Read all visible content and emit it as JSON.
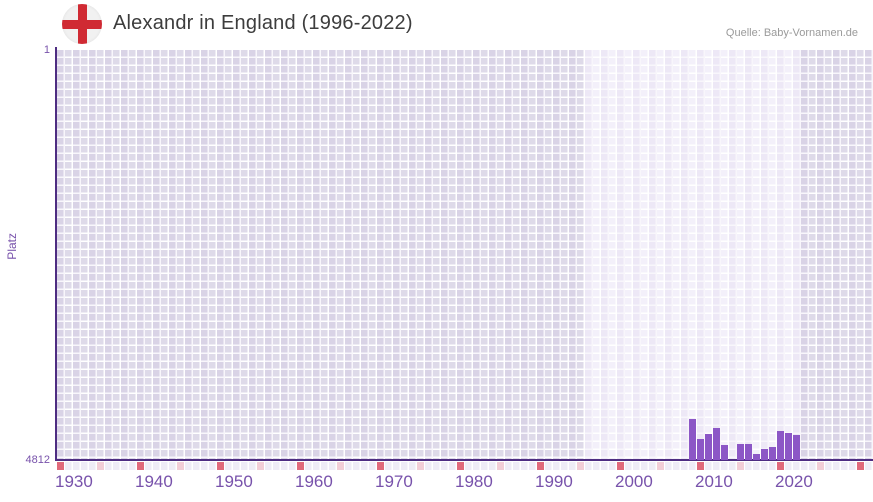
{
  "header": {
    "title": "Alexandr in England (1996-2022)",
    "source": "Quelle: Baby-Vornamen.de",
    "flag_icon": "england-flag"
  },
  "chart_data": {
    "type": "bar",
    "title": "Alexandr in England (1996-2022)",
    "ylabel": "Platz",
    "xlabel": "",
    "y_axis": {
      "top_label": "1",
      "bottom_label": "4812",
      "min": 1,
      "max": 4812,
      "inverted": true
    },
    "x_axis": {
      "start_year": 1930,
      "end_year": 2031,
      "labeled_ticks": [
        1930,
        1940,
        1950,
        1960,
        1970,
        1980,
        1990,
        2000,
        2010,
        2020
      ],
      "unlabeled_major_ticks": [
        2030
      ],
      "minor_ticks": [
        1935,
        1945,
        1955,
        1965,
        1975,
        1985,
        1995,
        2005,
        2015,
        2025
      ]
    },
    "highlight_range": {
      "from": 1996,
      "to": 2022
    },
    "grid": true,
    "legend": "none",
    "series": [
      {
        "name": "Platz",
        "points": [
          {
            "year": 2009,
            "rank": 4330
          },
          {
            "year": 2010,
            "rank": 4565
          },
          {
            "year": 2011,
            "rank": 4505
          },
          {
            "year": 2012,
            "rank": 4440
          },
          {
            "year": 2013,
            "rank": 4635
          },
          {
            "year": 2015,
            "rank": 4630
          },
          {
            "year": 2016,
            "rank": 4630
          },
          {
            "year": 2017,
            "rank": 4740
          },
          {
            "year": 2018,
            "rank": 4680
          },
          {
            "year": 2019,
            "rank": 4655
          },
          {
            "year": 2020,
            "rank": 4475
          },
          {
            "year": 2021,
            "rank": 4495
          },
          {
            "year": 2022,
            "rank": 4520
          }
        ]
      }
    ],
    "missing_years_in_range": [
      2014
    ],
    "colors": {
      "bar": "#8c57c6",
      "axis_line": "#4e2d82",
      "axis_text": "#7852ab",
      "major_tick_cell": "#e0697a",
      "minor_tick_cell": "#f2cdd6",
      "grid_cell_outside": "#dedae9",
      "grid_cell_highlight": "#f3f0fa",
      "title_text": "#3d3d3d",
      "source_text": "#9a9a9a",
      "flag_cross_red": "#d02a33"
    }
  }
}
